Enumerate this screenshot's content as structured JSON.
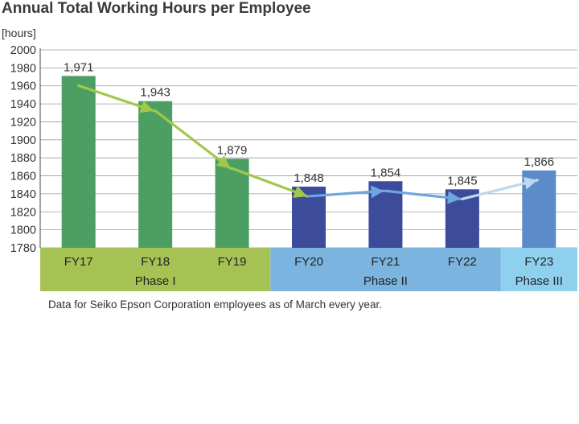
{
  "title": "Annual Total Working Hours per Employee",
  "footnote": "Data for Seiko Epson Corporation employees as of March every year.",
  "chart_data": {
    "type": "bar",
    "title": "Annual Total Working Hours per Employee",
    "ylabel": "[hours]",
    "ylim": [
      1780,
      2000
    ],
    "yticks": [
      1780,
      1800,
      1820,
      1840,
      1860,
      1880,
      1900,
      1920,
      1940,
      1960,
      1980,
      2000
    ],
    "grid": true,
    "categories": [
      "FY17",
      "FY18",
      "FY19",
      "FY20",
      "FY21",
      "FY22",
      "FY23"
    ],
    "values": [
      1971,
      1943,
      1879,
      1848,
      1854,
      1845,
      1866
    ],
    "value_labels": [
      "1,971",
      "1,943",
      "1,879",
      "1,848",
      "1,854",
      "1,845",
      "1,866"
    ],
    "phases": [
      {
        "label": "Phase I",
        "categories": [
          "FY17",
          "FY18",
          "FY19"
        ],
        "color": "#a6c254",
        "bar_color": "#4c9e63",
        "arrow_color": "#a2c84a"
      },
      {
        "label": "Phase II",
        "categories": [
          "FY20",
          "FY21",
          "FY22"
        ],
        "color": "#7cb4e0",
        "bar_color": "#3d4c9a",
        "arrow_color": "#6ea7df"
      },
      {
        "label": "Phase III",
        "categories": [
          "FY23"
        ],
        "color": "#8fd0ee",
        "bar_color": "#5b8bc8",
        "arrow_color": "#bcd9f0"
      }
    ]
  }
}
